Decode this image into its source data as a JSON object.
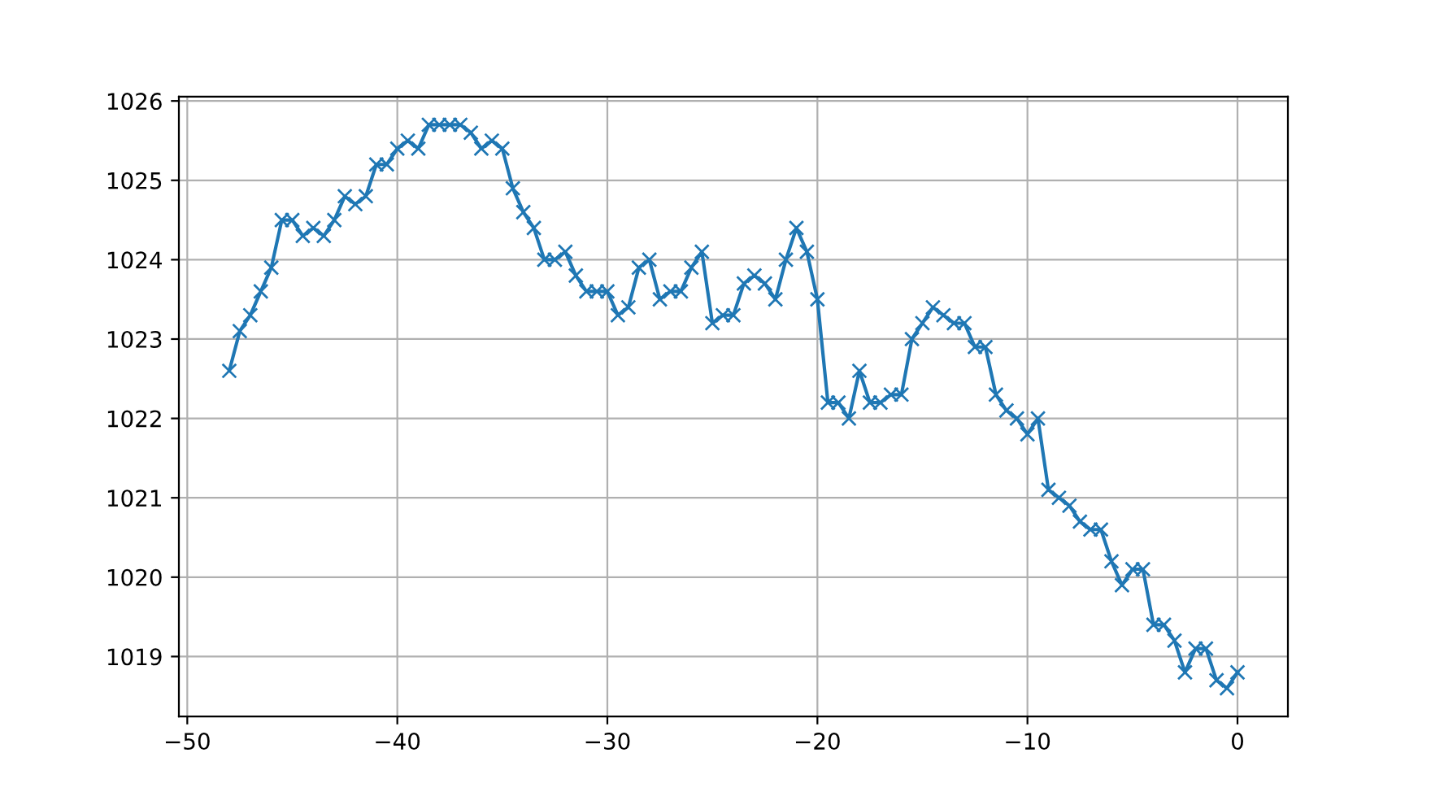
{
  "chart_data": {
    "type": "line",
    "x": [
      -48,
      -47.5,
      -47,
      -46.5,
      -46,
      -45.5,
      -45,
      -44.5,
      -44,
      -43.5,
      -43,
      -42.5,
      -42,
      -41.5,
      -41,
      -40.5,
      -40,
      -39.5,
      -39,
      -38.5,
      -38,
      -37.5,
      -37,
      -36.5,
      -36,
      -35.5,
      -35,
      -34.5,
      -34,
      -33.5,
      -33,
      -32.5,
      -32,
      -31.5,
      -31,
      -30.5,
      -30,
      -29.5,
      -29,
      -28.5,
      -28,
      -27.5,
      -27,
      -26.5,
      -26,
      -25.5,
      -25,
      -24.5,
      -24,
      -23.5,
      -23,
      -22.5,
      -22,
      -21.5,
      -21,
      -20.5,
      -20,
      -19.5,
      -19,
      -18.5,
      -18,
      -17.5,
      -17,
      -16.5,
      -16,
      -15.5,
      -15,
      -14.5,
      -14,
      -13.5,
      -13,
      -12.5,
      -12,
      -11.5,
      -11,
      -10.5,
      -10,
      -9.5,
      -9,
      -8.5,
      -8,
      -7.5,
      -7,
      -6.5,
      -6,
      -5.5,
      -5,
      -4.5,
      -4,
      -3.5,
      -3,
      -2.5,
      -2,
      -1.5,
      -1,
      -0.5,
      0
    ],
    "series": [
      {
        "color": "#1f77b4",
        "values": [
          1022.6,
          1023.1,
          1023.3,
          1023.6,
          1023.9,
          1024.5,
          1024.5,
          1024.3,
          1024.4,
          1024.3,
          1024.5,
          1024.8,
          1024.7,
          1024.8,
          1025.2,
          1025.2,
          1025.4,
          1025.5,
          1025.4,
          1025.7,
          1025.7,
          1025.7,
          1025.7,
          1025.6,
          1025.4,
          1025.5,
          1025.4,
          1024.9,
          1024.6,
          1024.4,
          1024.0,
          1024.0,
          1024.1,
          1023.8,
          1023.6,
          1023.6,
          1023.6,
          1023.3,
          1023.4,
          1023.9,
          1024.0,
          1023.5,
          1023.6,
          1023.6,
          1023.9,
          1024.1,
          1023.2,
          1023.3,
          1023.3,
          1023.7,
          1023.8,
          1023.7,
          1023.5,
          1024.0,
          1024.4,
          1024.1,
          1023.5,
          1022.2,
          1022.2,
          1022.0,
          1022.6,
          1022.2,
          1022.2,
          1022.3,
          1022.3,
          1023.0,
          1023.2,
          1023.4,
          1023.3,
          1023.2,
          1023.2,
          1022.9,
          1022.9,
          1022.3,
          1022.1,
          1022.0,
          1021.8,
          1022.0,
          1021.1,
          1021.0,
          1020.9,
          1020.7,
          1020.6,
          1020.6,
          1020.2,
          1019.9,
          1020.1,
          1020.1,
          1019.4,
          1019.4,
          1019.2,
          1018.8,
          1019.1,
          1019.1,
          1018.7,
          1018.6,
          1018.8
        ]
      }
    ],
    "xlim": [
      -50.4,
      2.4
    ],
    "xticks": [
      {
        "value": -50,
        "label": "−50"
      },
      {
        "value": -40,
        "label": "−40"
      },
      {
        "value": -30,
        "label": "−30"
      },
      {
        "value": -20,
        "label": "−20"
      },
      {
        "value": -10,
        "label": "−10"
      },
      0
    ],
    "ylim": [
      1018.245,
      1026.055
    ],
    "yticks": [
      1019,
      1020,
      1021,
      1022,
      1023,
      1024,
      1025,
      1026
    ],
    "grid": true,
    "marker": "cross",
    "line_style": "solid"
  }
}
